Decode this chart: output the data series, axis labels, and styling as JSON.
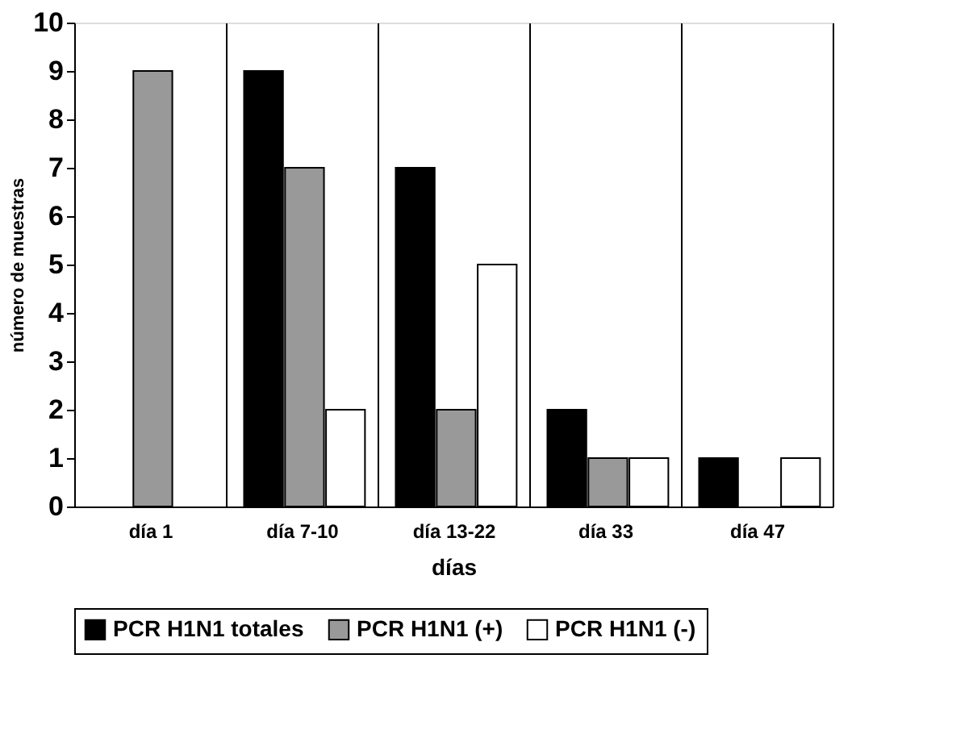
{
  "chart_data": {
    "type": "bar",
    "xlabel": "días",
    "ylabel": "número de muestras",
    "categories": [
      "día 1",
      "día 7-10",
      "día 13-22",
      "día 33",
      "día 47"
    ],
    "series": [
      {
        "name": "PCR H1N1 totales",
        "color": "#000000",
        "values": [
          null,
          9,
          7,
          2,
          1
        ]
      },
      {
        "name": "PCR H1N1 (+)",
        "color": "#999999",
        "values": [
          9,
          7,
          2,
          1,
          null
        ]
      },
      {
        "name": "PCR H1N1 (-)",
        "color": "#ffffff",
        "values": [
          null,
          2,
          5,
          1,
          1
        ]
      }
    ],
    "ylim": [
      0,
      10
    ],
    "yticks": [
      0,
      1,
      2,
      3,
      4,
      5,
      6,
      7,
      8,
      9,
      10
    ],
    "grid": "x",
    "legend": "bottom"
  }
}
